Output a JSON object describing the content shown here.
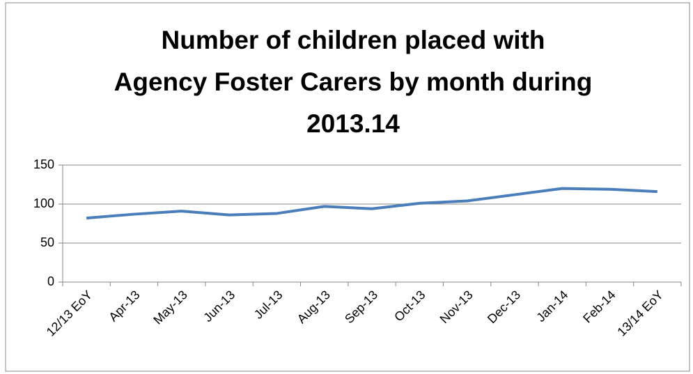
{
  "chart_data": {
    "type": "line",
    "title": [
      "Number of children placed with",
      "Agency Foster Carers by month during",
      "2013.14"
    ],
    "categories": [
      "12/13 EoY",
      "Apr-13",
      "May-13",
      "Jun-13",
      "Jul-13",
      "Aug-13",
      "Sep-13",
      "Oct-13",
      "Nov-13",
      "Dec-13",
      "Jan-14",
      "Feb-14",
      "13/14 EoY"
    ],
    "series": [
      {
        "color": "#4a7ebb",
        "values": [
          82,
          87,
          91,
          86,
          88,
          97,
          94,
          101,
          104,
          112,
          120,
          119,
          116
        ]
      }
    ],
    "ylim": [
      0,
      150
    ],
    "yticks": [
      0,
      50,
      100,
      150
    ],
    "grid": true
  }
}
